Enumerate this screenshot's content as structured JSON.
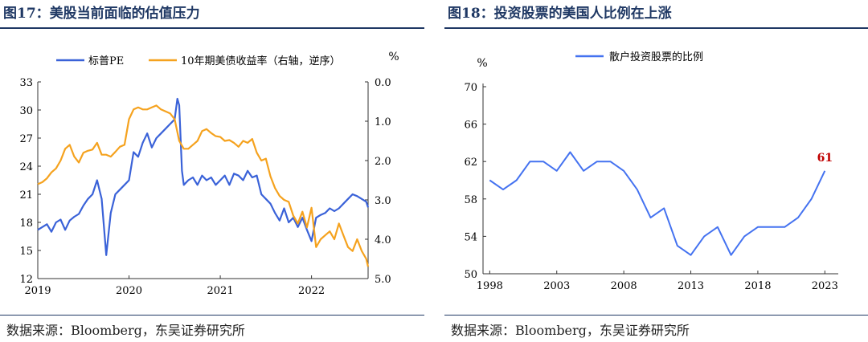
{
  "charts": [
    {
      "title": "图17：美股当前面临的估值压力",
      "source": "数据来源：Bloomberg，东吴证券研究所",
      "unit_right": "%",
      "chart_data": {
        "type": "line",
        "x_range": [
          2019.0,
          2022.62
        ],
        "x_ticks": [
          2019,
          2020,
          2021,
          2022
        ],
        "y_left": {
          "ticks": [
            12,
            15,
            18,
            21,
            24,
            27,
            30,
            33
          ],
          "range": [
            12,
            33
          ]
        },
        "y_right": {
          "ticks": [
            "0.0",
            "1.0",
            "2.0",
            "3.0",
            "4.0",
            "5.0"
          ],
          "range": [
            0,
            5
          ],
          "inverted": true
        },
        "series": [
          {
            "name": "标普PE",
            "axis": "left",
            "color": "#3a62d8",
            "x": [
              2019.0,
              2019.05,
              2019.1,
              2019.15,
              2019.2,
              2019.25,
              2019.3,
              2019.35,
              2019.4,
              2019.45,
              2019.5,
              2019.55,
              2019.6,
              2019.65,
              2019.7,
              2019.75,
              2019.8,
              2019.85,
              2019.9,
              2019.95,
              2020.0,
              2020.05,
              2020.1,
              2020.15,
              2020.2,
              2020.25,
              2020.3,
              2020.35,
              2020.4,
              2020.45,
              2020.5,
              2020.53,
              2020.55,
              2020.58,
              2020.6,
              2020.65,
              2020.7,
              2020.75,
              2020.8,
              2020.85,
              2020.9,
              2020.95,
              2021.0,
              2021.05,
              2021.1,
              2021.15,
              2021.2,
              2021.25,
              2021.3,
              2021.35,
              2021.4,
              2021.45,
              2021.5,
              2021.55,
              2021.6,
              2021.65,
              2021.7,
              2021.75,
              2021.8,
              2021.85,
              2021.9,
              2021.95,
              2022.0,
              2022.05,
              2022.1,
              2022.15,
              2022.2,
              2022.25,
              2022.3,
              2022.35,
              2022.4,
              2022.45,
              2022.5,
              2022.55,
              2022.6,
              2022.62
            ],
            "values": [
              17.2,
              17.5,
              17.8,
              17.0,
              18.0,
              18.3,
              17.2,
              18.2,
              18.6,
              18.9,
              19.8,
              20.5,
              21.0,
              22.5,
              20.5,
              14.5,
              19.0,
              21.0,
              21.5,
              22.0,
              22.5,
              25.5,
              25.0,
              26.5,
              27.5,
              26.0,
              27.0,
              27.5,
              28.0,
              28.5,
              29.0,
              31.2,
              30.5,
              23.5,
              22.0,
              22.5,
              22.8,
              22.0,
              23.0,
              22.5,
              22.8,
              22.0,
              22.5,
              23.0,
              22.0,
              23.2,
              23.0,
              22.5,
              23.5,
              22.8,
              23.0,
              21.0,
              20.5,
              20.0,
              19.0,
              18.2,
              19.5,
              18.0,
              18.5,
              17.5,
              18.5,
              17.2,
              16.0,
              18.5,
              18.8,
              19.0,
              19.5,
              19.2,
              19.5,
              20.0,
              20.5,
              21.0,
              20.8,
              20.5,
              20.2,
              19.6
            ]
          },
          {
            "name": "10年期美债收益率（右轴，逆序）",
            "axis": "right",
            "color": "#f5a21e",
            "x": [
              2019.0,
              2019.05,
              2019.1,
              2019.15,
              2019.2,
              2019.25,
              2019.3,
              2019.35,
              2019.4,
              2019.45,
              2019.5,
              2019.55,
              2019.6,
              2019.65,
              2019.7,
              2019.75,
              2019.8,
              2019.85,
              2019.9,
              2019.95,
              2020.0,
              2020.05,
              2020.1,
              2020.15,
              2020.2,
              2020.25,
              2020.3,
              2020.35,
              2020.4,
              2020.45,
              2020.5,
              2020.55,
              2020.6,
              2020.65,
              2020.7,
              2020.75,
              2020.8,
              2020.85,
              2020.9,
              2020.95,
              2021.0,
              2021.05,
              2021.1,
              2021.15,
              2021.2,
              2021.25,
              2021.3,
              2021.35,
              2021.4,
              2021.45,
              2021.5,
              2021.55,
              2021.6,
              2021.65,
              2021.7,
              2021.75,
              2021.8,
              2021.85,
              2021.9,
              2021.95,
              2022.0,
              2022.05,
              2022.1,
              2022.15,
              2022.2,
              2022.25,
              2022.3,
              2022.35,
              2022.4,
              2022.45,
              2022.5,
              2022.55,
              2022.6,
              2022.62
            ],
            "values": [
              2.6,
              2.55,
              2.45,
              2.3,
              2.2,
              2.0,
              1.7,
              1.6,
              1.9,
              2.05,
              1.8,
              1.75,
              1.72,
              1.55,
              1.85,
              1.85,
              1.9,
              1.78,
              1.65,
              1.6,
              0.95,
              0.7,
              0.65,
              0.7,
              0.7,
              0.65,
              0.6,
              0.7,
              0.75,
              0.8,
              0.95,
              1.5,
              1.7,
              1.7,
              1.6,
              1.5,
              1.25,
              1.2,
              1.3,
              1.38,
              1.4,
              1.5,
              1.48,
              1.55,
              1.65,
              1.5,
              1.55,
              1.45,
              1.8,
              2.0,
              1.95,
              2.4,
              2.7,
              2.9,
              3.0,
              3.05,
              3.4,
              3.6,
              3.3,
              3.7,
              3.2,
              4.2,
              4.0,
              3.9,
              3.8,
              4.0,
              3.6,
              3.9,
              4.2,
              4.3,
              4.0,
              4.3,
              4.5,
              4.7
            ]
          }
        ]
      }
    },
    {
      "title": "图18：投资股票的美国人比例在上涨",
      "source": "数据来源：Bloomberg，东吴证券研究所",
      "unit_left": "%",
      "chart_data": {
        "type": "line",
        "x_range": [
          1997.5,
          2024.0
        ],
        "x_ticks": [
          1998,
          2003,
          2008,
          2013,
          2018,
          2023
        ],
        "y_left": {
          "ticks": [
            50,
            54,
            58,
            62,
            66,
            70
          ],
          "range": [
            50,
            70
          ]
        },
        "annotation": {
          "text": "61",
          "x": 2023,
          "y": 61,
          "color": "#c00000"
        },
        "series": [
          {
            "name": "散户投资股票的比例",
            "axis": "left",
            "color": "#4472f0",
            "x": [
              1998,
              1999,
              2000,
              2001,
              2002,
              2003,
              2004,
              2005,
              2006,
              2007,
              2008,
              2009,
              2010,
              2011,
              2012,
              2013,
              2014,
              2015,
              2016,
              2017,
              2018,
              2019,
              2020,
              2021,
              2022,
              2023
            ],
            "values": [
              60,
              59,
              60,
              62,
              62,
              61,
              63,
              61,
              62,
              62,
              61,
              59,
              56,
              57,
              53,
              52,
              54,
              55,
              52,
              54,
              55,
              55,
              55,
              56,
              58,
              61
            ]
          }
        ]
      }
    }
  ]
}
